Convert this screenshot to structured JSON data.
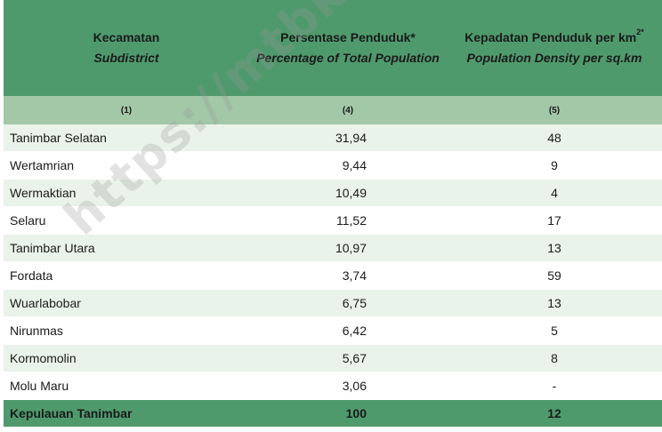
{
  "header": {
    "col1_title": "Kecamatan",
    "col1_sub": "Subdistrict",
    "col2_title": "Persentase Penduduk*",
    "col2_sub": "Percentage of Total Population",
    "col3_title": "Kepadatan Penduduk per km",
    "col3_sup": "2*",
    "col3_sub": "Population Density per sq.km"
  },
  "col_numbers": [
    "(1)",
    "(4)",
    "(5)"
  ],
  "rows": [
    {
      "name": "Tanimbar Selatan",
      "pct": "31,94",
      "dens": "48"
    },
    {
      "name": "Wertamrian",
      "pct": "9,44",
      "dens": "9"
    },
    {
      "name": "Wermaktian",
      "pct": "10,49",
      "dens": "4"
    },
    {
      "name": "Selaru",
      "pct": "11,52",
      "dens": "17"
    },
    {
      "name": "Tanimbar Utara",
      "pct": "10,97",
      "dens": "13"
    },
    {
      "name": "Fordata",
      "pct": "3,74",
      "dens": "59"
    },
    {
      "name": "Wuarlabobar",
      "pct": "6,75",
      "dens": "13"
    },
    {
      "name": "Nirunmas",
      "pct": "6,42",
      "dens": "5"
    },
    {
      "name": "Kormomolin",
      "pct": "5,67",
      "dens": "8"
    },
    {
      "name": "Molu Maru",
      "pct": "3,06",
      "dens": "-"
    }
  ],
  "total": {
    "name": "Kepulauan Tanimbar",
    "pct": "100",
    "dens": "12"
  },
  "watermark": "https://mtbkab.bps.go.id",
  "colors": {
    "header": "#4f9a6d",
    "subheader": "#a2c8a7",
    "stripe": "#eaf3ea"
  }
}
